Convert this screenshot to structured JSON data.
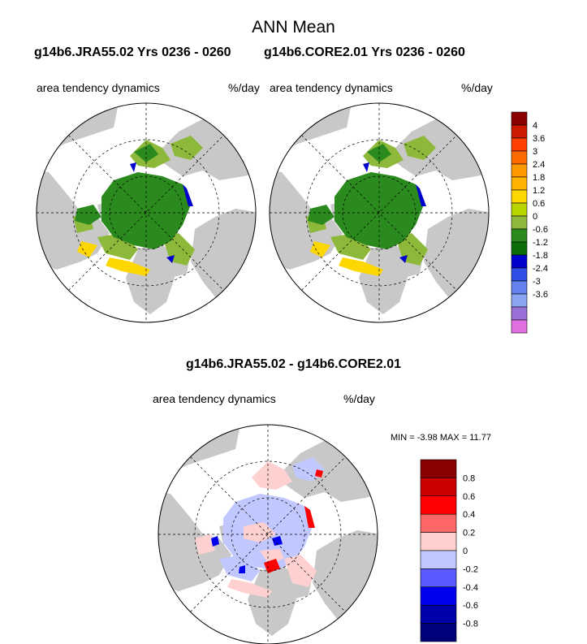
{
  "header": {
    "title": "ANN Mean",
    "run1": "g14b6.JRA55.02  Yrs 0236 - 0260",
    "run2": "g14b6.CORE2.01  Yrs 0236 - 0260"
  },
  "panels": {
    "left": {
      "field": "area tendency dynamics",
      "units": "%/day"
    },
    "right": {
      "field": "area tendency dynamics",
      "units": "%/day"
    },
    "diff": {
      "title": "g14b6.JRA55.02 - g14b6.CORE2.01",
      "field": "area tendency dynamics",
      "units": "%/day"
    }
  },
  "stats": {
    "min_label": "MIN =",
    "min": "-3.98",
    "max_label": "MAX =",
    "max": "11.77"
  },
  "colorbar_top": {
    "labels": [
      "4",
      "3.6",
      "3",
      "2.4",
      "1.8",
      "1.2",
      "0.6",
      "0",
      "-0.6",
      "-1.2",
      "-1.8",
      "-2.4",
      "-3",
      "-3.6"
    ],
    "colors": [
      "#8b0000",
      "#cc1a00",
      "#ff4000",
      "#ff6a00",
      "#ff9900",
      "#ffb300",
      "#ffd700",
      "#b8d400",
      "#8db83a",
      "#2b8a1e",
      "#0b6e0b",
      "#0000cc",
      "#2e4ee6",
      "#6482ee",
      "#8aa6f2",
      "#9a6fd6",
      "#e070e0"
    ]
  },
  "colorbar_diff": {
    "labels": [
      "0.8",
      "0.6",
      "0.4",
      "0.2",
      "0",
      "-0.2",
      "-0.4",
      "-0.6",
      "-0.8"
    ],
    "colors": [
      "#8b0000",
      "#cc0000",
      "#ff0000",
      "#ff6666",
      "#ffd0d0",
      "#c0c8ff",
      "#5a5aff",
      "#0000ee",
      "#0000a8",
      "#00007a"
    ]
  },
  "map_colors": {
    "land": "#c8c8c8",
    "ocean": "#ffffff",
    "ice_green": "#2b8a1e",
    "ice_light": "#8db83a",
    "ice_yellow": "#ffd700",
    "ice_blue": "#0000cc",
    "diff_pos": "#ffd0d0",
    "diff_neg": "#c0c8ff",
    "diff_red": "#ff0000",
    "diff_blue": "#0000ee"
  }
}
